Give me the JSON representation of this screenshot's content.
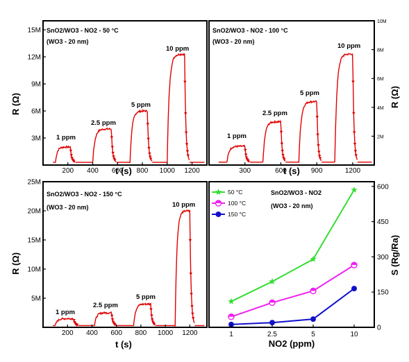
{
  "chart_data": [
    {
      "type": "line",
      "title": "SnO2/WO3 - NO2 - 50 °C",
      "subtitle": "(WO3 - 20 nm)",
      "xlabel": "t (s)",
      "ylabel": "R (Ω)",
      "xlim": [
        0,
        1320
      ],
      "ylim": [
        0,
        16000000
      ],
      "xticks": [
        "200",
        "400",
        "600",
        "800",
        "1000",
        "1200"
      ],
      "yticks": [
        "3M",
        "6M",
        "9M",
        "12M",
        "15M"
      ],
      "annotations": [
        "1 ppm",
        "2.5 ppm",
        "5 ppm",
        "10 ppm"
      ],
      "pulses": [
        {
          "on": 100,
          "off": 220,
          "baseline": 300000,
          "high": 2000000
        },
        {
          "on": 400,
          "off": 550,
          "baseline": 300000,
          "high": 4000000
        },
        {
          "on": 700,
          "off": 840,
          "baseline": 300000,
          "high": 6000000
        },
        {
          "on": 1000,
          "off": 1140,
          "baseline": 300000,
          "high": 12300000
        }
      ]
    },
    {
      "type": "line",
      "title": "SnO2/WO3 - NO2 - 100 °C",
      "subtitle": "(WO3 - 20 nm)",
      "xlabel": "t (s)",
      "ylabel": "R (Ω)",
      "xlim": [
        0,
        1380
      ],
      "ylim": [
        0,
        10000000
      ],
      "xticks": [
        "300",
        "600",
        "900",
        "1200"
      ],
      "yticks": [
        "2M",
        "4M",
        "6M",
        "8M",
        "10M"
      ],
      "annotations": [
        "1 ppm",
        "2.5 ppm",
        "5 ppm",
        "10 ppm"
      ],
      "pulses": [
        {
          "on": 150,
          "off": 300,
          "baseline": 200000,
          "high": 1300000
        },
        {
          "on": 450,
          "off": 600,
          "baseline": 200000,
          "high": 3000000
        },
        {
          "on": 750,
          "off": 900,
          "baseline": 200000,
          "high": 4400000
        },
        {
          "on": 1050,
          "off": 1200,
          "baseline": 200000,
          "high": 7700000
        }
      ]
    },
    {
      "type": "line",
      "title": "SnO2/WO3 - NO2 - 150 °C",
      "subtitle": "(WO3 - 20 nm)",
      "xlabel": "t (s)",
      "ylabel": "R (Ω)",
      "xlim": [
        0,
        1340
      ],
      "ylim": [
        0,
        25000000
      ],
      "xticks": [
        "200",
        "400",
        "600",
        "800",
        "1000",
        "1200"
      ],
      "yticks": [
        "5M",
        "10M",
        "15M",
        "20M",
        "25M"
      ],
      "annotations": [
        "1 ppm",
        "2.5 ppm",
        "5 ppm",
        "10 ppm"
      ],
      "pulses": [
        {
          "on": 100,
          "off": 250,
          "baseline": 300000,
          "high": 1500000
        },
        {
          "on": 420,
          "off": 560,
          "baseline": 300000,
          "high": 2500000
        },
        {
          "on": 740,
          "off": 880,
          "baseline": 300000,
          "high": 4000000
        },
        {
          "on": 1080,
          "off": 1200,
          "baseline": 300000,
          "high": 20000000
        }
      ]
    },
    {
      "type": "line",
      "title": "SnO2/WO3 - NO2",
      "subtitle": "(WO3 - 20 nm)",
      "xlabel": "NO2 (ppm)",
      "ylabel": "S (Rg/Ra)",
      "categories": [
        "1",
        "2.5",
        "5",
        "10"
      ],
      "ylim": [
        0,
        620
      ],
      "yticks": [
        "0",
        "150",
        "300",
        "450",
        "600"
      ],
      "legend_position": "top-left",
      "series": [
        {
          "name": "50 °C",
          "color": "#33dd33",
          "marker": "star",
          "values": [
            110,
            195,
            290,
            585
          ]
        },
        {
          "name": "100 °C",
          "color": "#ee22ee",
          "marker": "half-circle",
          "values": [
            45,
            105,
            155,
            265
          ]
        },
        {
          "name": "150 °C",
          "color": "#1111cc",
          "marker": "circle",
          "values": [
            12,
            20,
            35,
            165
          ]
        }
      ]
    }
  ]
}
